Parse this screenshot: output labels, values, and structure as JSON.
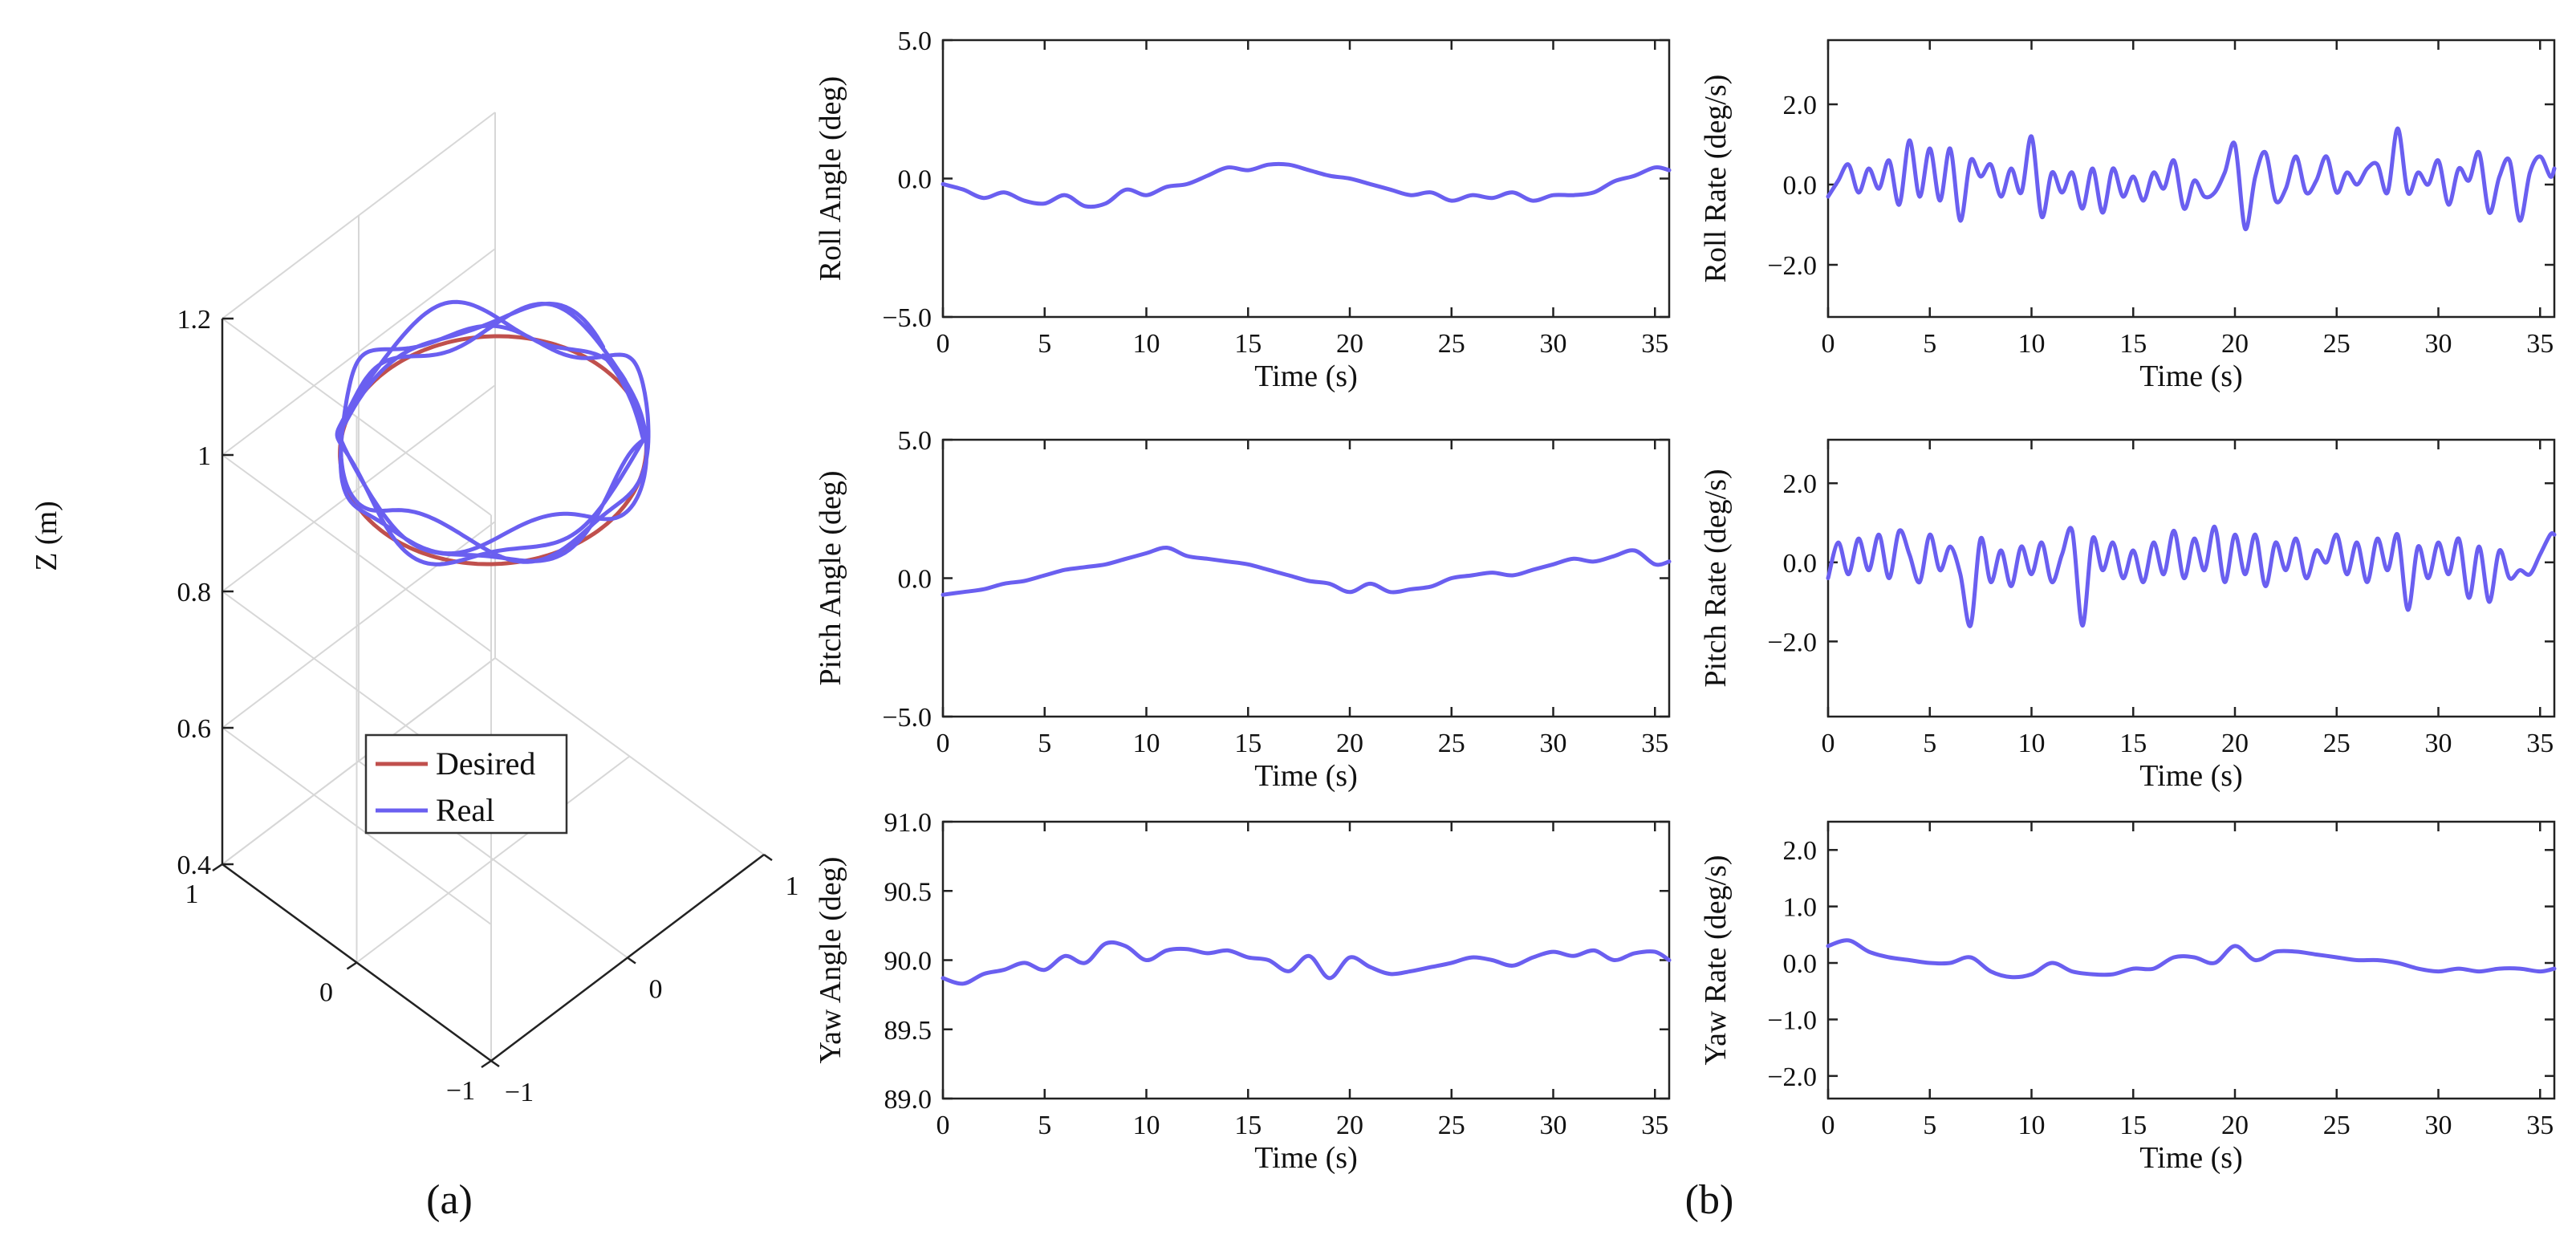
{
  "figure": {
    "panel_labels": [
      "(a)",
      "(b)"
    ]
  },
  "colors": {
    "desired": "#c0504d",
    "real": "#6a5ff0",
    "axis": "#222222",
    "grid": "#d7d7d7"
  },
  "chart_data": [
    {
      "type": "line3d",
      "id": "trajectory",
      "title": "",
      "zlabel": "Z (m)",
      "xticks": [
        "−1",
        "0",
        "1"
      ],
      "yticks": [
        "1",
        "0",
        "−1"
      ],
      "zticks": [
        "1.2",
        "1",
        "0.8",
        "0.6",
        "0.4"
      ],
      "xlim": [
        -1,
        1
      ],
      "ylim": [
        -1,
        1
      ],
      "zlim": [
        0.4,
        1.2
      ],
      "grid": true,
      "legend": {
        "position": "inside-bottom",
        "entries": [
          "Desired",
          "Real"
        ]
      },
      "series": [
        {
          "name": "Desired",
          "shape": "circle",
          "center": [
            0,
            0
          ],
          "radius": 0.8,
          "z": 1.0
        },
        {
          "name": "Real",
          "shape": "circle-with-deviation",
          "center": [
            0,
            0
          ],
          "radius": 0.8,
          "z_mean": 1.02,
          "z_deviation": 0.04,
          "laps": 4
        }
      ]
    },
    {
      "type": "line",
      "id": "roll-angle",
      "xlabel": "Time (s)",
      "ylabel": "Roll Angle (deg)",
      "xlim": [
        0,
        35.7
      ],
      "ylim": [
        -5,
        5
      ],
      "xticks": [
        "0",
        "5",
        "10",
        "15",
        "20",
        "25",
        "30",
        "35"
      ],
      "yticks": [
        "5.0",
        "0.0",
        "−5.0"
      ],
      "ytick_values": [
        5,
        0,
        -5
      ],
      "series": [
        {
          "x": [
            0,
            1,
            2,
            3,
            4,
            5,
            6,
            7,
            8,
            9,
            10,
            11,
            12,
            13,
            14,
            15,
            16,
            17,
            18,
            19,
            20,
            21,
            22,
            23,
            24,
            25,
            26,
            27,
            28,
            29,
            30,
            31,
            32,
            33,
            34,
            35,
            35.7
          ],
          "y": [
            -0.2,
            -0.4,
            -0.7,
            -0.5,
            -0.8,
            -0.9,
            -0.6,
            -1.0,
            -0.9,
            -0.4,
            -0.6,
            -0.3,
            -0.2,
            0.1,
            0.4,
            0.3,
            0.5,
            0.5,
            0.3,
            0.1,
            0.0,
            -0.2,
            -0.4,
            -0.6,
            -0.5,
            -0.8,
            -0.6,
            -0.7,
            -0.5,
            -0.8,
            -0.6,
            -0.6,
            -0.5,
            -0.1,
            0.1,
            0.4,
            0.3
          ]
        }
      ]
    },
    {
      "type": "line",
      "id": "roll-rate",
      "xlabel": "Time (s)",
      "ylabel": "Roll Rate (deg/s)",
      "xlim": [
        0,
        35.7
      ],
      "ylim": [
        -3.3,
        3.6
      ],
      "xticks": [
        "0",
        "5",
        "10",
        "15",
        "20",
        "25",
        "30",
        "35"
      ],
      "yticks": [
        "2.0",
        "0.0",
        "−2.0"
      ],
      "ytick_values": [
        2,
        0,
        -2
      ],
      "series": [
        {
          "x": [
            0,
            0.5,
            1,
            1.5,
            2,
            2.5,
            3,
            3.5,
            4,
            4.5,
            5,
            5.5,
            6,
            6.5,
            7,
            7.5,
            8,
            8.5,
            9,
            9.5,
            10,
            10.5,
            11,
            11.5,
            12,
            12.5,
            13,
            13.5,
            14,
            14.5,
            15,
            15.5,
            16,
            16.5,
            17,
            17.5,
            18,
            18.5,
            19,
            19.5,
            20,
            20.5,
            21,
            21.5,
            22,
            22.5,
            23,
            23.5,
            24,
            24.5,
            25,
            25.5,
            26,
            26.5,
            27,
            27.5,
            28,
            28.5,
            29,
            29.5,
            30,
            30.5,
            31,
            31.5,
            32,
            32.5,
            33,
            33.5,
            34,
            34.5,
            35,
            35.5,
            35.7
          ],
          "y": [
            -0.3,
            0.1,
            0.5,
            -0.2,
            0.4,
            -0.1,
            0.6,
            -0.5,
            1.1,
            -0.3,
            0.9,
            -0.4,
            0.9,
            -0.9,
            0.6,
            0.2,
            0.5,
            -0.3,
            0.4,
            -0.2,
            1.2,
            -0.8,
            0.3,
            -0.2,
            0.3,
            -0.6,
            0.4,
            -0.7,
            0.4,
            -0.3,
            0.2,
            -0.4,
            0.3,
            -0.1,
            0.6,
            -0.6,
            0.1,
            -0.3,
            -0.2,
            0.3,
            1.0,
            -1.1,
            0.2,
            0.8,
            -0.4,
            -0.1,
            0.7,
            -0.2,
            0.1,
            0.7,
            -0.2,
            0.3,
            0.0,
            0.4,
            0.5,
            -0.2,
            1.4,
            -0.2,
            0.3,
            0.0,
            0.6,
            -0.5,
            0.4,
            0.1,
            0.8,
            -0.7,
            0.2,
            0.6,
            -0.9,
            0.3,
            0.7,
            0.2,
            0.4
          ]
        }
      ]
    },
    {
      "type": "line",
      "id": "pitch-angle",
      "xlabel": "Time (s)",
      "ylabel": "Pitch Angle (deg)",
      "xlim": [
        0,
        35.7
      ],
      "ylim": [
        -5,
        5
      ],
      "xticks": [
        "0",
        "5",
        "10",
        "15",
        "20",
        "25",
        "30",
        "35"
      ],
      "yticks": [
        "5.0",
        "0.0",
        "−5.0"
      ],
      "ytick_values": [
        5,
        0,
        -5
      ],
      "series": [
        {
          "x": [
            0,
            1,
            2,
            3,
            4,
            5,
            6,
            7,
            8,
            9,
            10,
            11,
            12,
            13,
            14,
            15,
            16,
            17,
            18,
            19,
            20,
            21,
            22,
            23,
            24,
            25,
            26,
            27,
            28,
            29,
            30,
            31,
            32,
            33,
            34,
            35,
            35.7
          ],
          "y": [
            -0.6,
            -0.5,
            -0.4,
            -0.2,
            -0.1,
            0.1,
            0.3,
            0.4,
            0.5,
            0.7,
            0.9,
            1.1,
            0.8,
            0.7,
            0.6,
            0.5,
            0.3,
            0.1,
            -0.1,
            -0.2,
            -0.5,
            -0.2,
            -0.5,
            -0.4,
            -0.3,
            0.0,
            0.1,
            0.2,
            0.1,
            0.3,
            0.5,
            0.7,
            0.6,
            0.8,
            1.0,
            0.5,
            0.6
          ]
        }
      ]
    },
    {
      "type": "line",
      "id": "pitch-rate",
      "xlabel": "Time (s)",
      "ylabel": "Pitch Rate (deg/s)",
      "xlim": [
        0,
        35.7
      ],
      "ylim": [
        -3.9,
        3.1
      ],
      "xticks": [
        "0",
        "5",
        "10",
        "15",
        "20",
        "25",
        "30",
        "35"
      ],
      "yticks": [
        "2.0",
        "0.0",
        "−2.0"
      ],
      "ytick_values": [
        2,
        0,
        -2
      ],
      "series": [
        {
          "x": [
            0,
            0.5,
            1,
            1.5,
            2,
            2.5,
            3,
            3.5,
            4,
            4.5,
            5,
            5.5,
            6,
            6.5,
            7,
            7.5,
            8,
            8.5,
            9,
            9.5,
            10,
            10.5,
            11,
            11.5,
            12,
            12.5,
            13,
            13.5,
            14,
            14.5,
            15,
            15.5,
            16,
            16.5,
            17,
            17.5,
            18,
            18.5,
            19,
            19.5,
            20,
            20.5,
            21,
            21.5,
            22,
            22.5,
            23,
            23.5,
            24,
            24.5,
            25,
            25.5,
            26,
            26.5,
            27,
            27.5,
            28,
            28.5,
            29,
            29.5,
            30,
            30.5,
            31,
            31.5,
            32,
            32.5,
            33,
            33.5,
            34,
            34.5,
            35,
            35.5,
            35.7
          ],
          "y": [
            -0.4,
            0.5,
            -0.3,
            0.6,
            -0.2,
            0.7,
            -0.4,
            0.8,
            0.2,
            -0.5,
            0.7,
            -0.2,
            0.4,
            -0.3,
            -1.6,
            0.6,
            -0.5,
            0.3,
            -0.6,
            0.4,
            -0.3,
            0.5,
            -0.5,
            0.2,
            0.8,
            -1.6,
            0.6,
            -0.2,
            0.5,
            -0.4,
            0.3,
            -0.5,
            0.5,
            -0.3,
            0.8,
            -0.4,
            0.6,
            -0.2,
            0.9,
            -0.5,
            0.7,
            -0.3,
            0.7,
            -0.6,
            0.5,
            -0.2,
            0.6,
            -0.4,
            0.3,
            0.0,
            0.7,
            -0.3,
            0.5,
            -0.5,
            0.6,
            -0.2,
            0.7,
            -1.2,
            0.4,
            -0.4,
            0.5,
            -0.3,
            0.6,
            -0.9,
            0.4,
            -1.0,
            0.3,
            -0.4,
            -0.2,
            -0.3,
            0.2,
            0.7,
            0.7
          ]
        }
      ]
    },
    {
      "type": "line",
      "id": "yaw-angle",
      "xlabel": "Time (s)",
      "ylabel": "Yaw Angle (deg)",
      "xlim": [
        0,
        35.7
      ],
      "ylim": [
        89,
        91
      ],
      "xticks": [
        "0",
        "5",
        "10",
        "15",
        "20",
        "25",
        "30",
        "35"
      ],
      "yticks": [
        "91.0",
        "90.5",
        "90.0",
        "89.5",
        "89.0"
      ],
      "ytick_values": [
        91,
        90.5,
        90,
        89.5,
        89
      ],
      "series": [
        {
          "x": [
            0,
            1,
            2,
            3,
            4,
            5,
            6,
            7,
            8,
            9,
            10,
            11,
            12,
            13,
            14,
            15,
            16,
            17,
            18,
            19,
            20,
            21,
            22,
            23,
            24,
            25,
            26,
            27,
            28,
            29,
            30,
            31,
            32,
            33,
            34,
            35,
            35.7
          ],
          "y": [
            89.87,
            89.83,
            89.9,
            89.93,
            89.98,
            89.93,
            90.03,
            89.98,
            90.12,
            90.1,
            90.0,
            90.07,
            90.08,
            90.05,
            90.07,
            90.02,
            90.0,
            89.92,
            90.03,
            89.87,
            90.02,
            89.95,
            89.9,
            89.92,
            89.95,
            89.98,
            90.02,
            90.0,
            89.96,
            90.02,
            90.06,
            90.03,
            90.07,
            90.0,
            90.05,
            90.06,
            90.0
          ]
        }
      ]
    },
    {
      "type": "line",
      "id": "yaw-rate",
      "xlabel": "Time (s)",
      "ylabel": "Yaw Rate (deg/s)",
      "xlim": [
        0,
        35.7
      ],
      "ylim": [
        -2.4,
        2.5
      ],
      "xticks": [
        "0",
        "5",
        "10",
        "15",
        "20",
        "25",
        "30",
        "35"
      ],
      "yticks": [
        "2.0",
        "1.0",
        "0.0",
        "−1.0",
        "−2.0"
      ],
      "ytick_values": [
        2,
        1,
        0,
        -1,
        -2
      ],
      "series": [
        {
          "x": [
            0,
            1,
            2,
            3,
            4,
            5,
            6,
            7,
            8,
            9,
            10,
            11,
            12,
            13,
            14,
            15,
            16,
            17,
            18,
            19,
            20,
            21,
            22,
            23,
            24,
            25,
            26,
            27,
            28,
            29,
            30,
            31,
            32,
            33,
            34,
            35,
            35.7
          ],
          "y": [
            0.3,
            0.4,
            0.2,
            0.1,
            0.05,
            0.0,
            0.0,
            0.1,
            -0.15,
            -0.25,
            -0.2,
            0.0,
            -0.15,
            -0.2,
            -0.2,
            -0.1,
            -0.1,
            0.1,
            0.1,
            0.0,
            0.3,
            0.05,
            0.2,
            0.2,
            0.15,
            0.1,
            0.05,
            0.05,
            0.0,
            -0.1,
            -0.15,
            -0.1,
            -0.15,
            -0.1,
            -0.1,
            -0.15,
            -0.1
          ]
        }
      ]
    }
  ]
}
